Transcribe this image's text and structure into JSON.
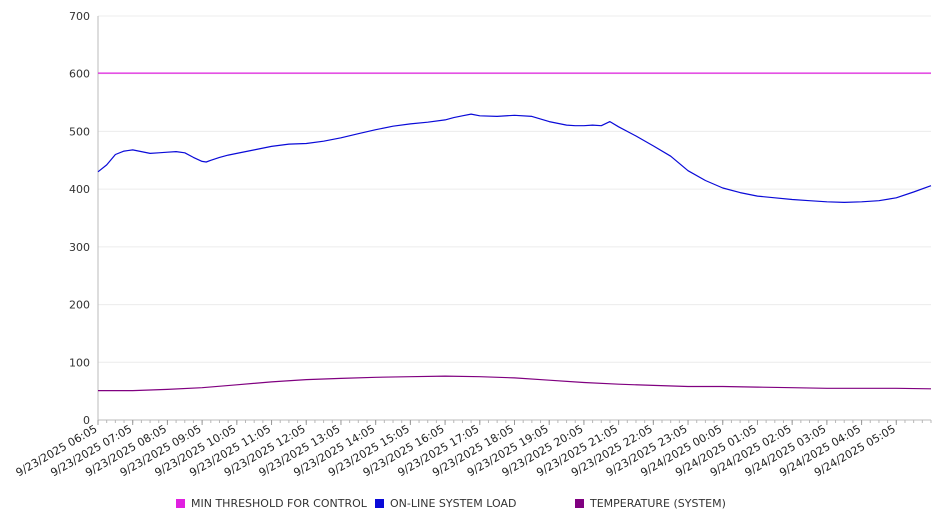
{
  "chart_data": {
    "type": "line",
    "title": "",
    "xlabel": "",
    "ylabel": "",
    "ylim": [
      0,
      700
    ],
    "yticks": [
      "0",
      "100",
      "200",
      "300",
      "400",
      "500",
      "600",
      "700"
    ],
    "xtick_labels": [
      "9/23/2025 06:05",
      "9/23/2025 07:05",
      "9/23/2025 08:05",
      "9/23/2025 09:05",
      "9/23/2025 10:05",
      "9/23/2025 11:05",
      "9/23/2025 12:05",
      "9/23/2025 13:05",
      "9/23/2025 14:05",
      "9/23/2025 15:05",
      "9/23/2025 16:05",
      "9/23/2025 17:05",
      "9/23/2025 18:05",
      "9/23/2025 19:05",
      "9/23/2025 20:05",
      "9/23/2025 21:05",
      "9/23/2025 22:05",
      "9/23/2025 23:05",
      "9/24/2025 00:05",
      "9/24/2025 01:05",
      "9/24/2025 02:05",
      "9/24/2025 03:05",
      "9/24/2025 04:05",
      "9/24/2025 05:05"
    ],
    "grid": true,
    "legend_position": "bottom",
    "series": [
      {
        "name": "MIN THRESHOLD FOR CONTROL",
        "color": "#e020e0",
        "x": [
          "9/23/2025 06:05",
          "9/24/2025 06:05"
        ],
        "values": [
          601,
          601
        ]
      },
      {
        "name": "ON-LINE SYSTEM LOAD",
        "color": "#0a0ad8",
        "x": [
          "9/23/2025 06:05",
          "9/23/2025 06:20",
          "9/23/2025 06:35",
          "9/23/2025 06:50",
          "9/23/2025 07:05",
          "9/23/2025 07:20",
          "9/23/2025 07:35",
          "9/23/2025 07:50",
          "9/23/2025 08:05",
          "9/23/2025 08:20",
          "9/23/2025 08:35",
          "9/23/2025 08:50",
          "9/23/2025 09:05",
          "9/23/2025 09:12",
          "9/23/2025 09:20",
          "9/23/2025 09:35",
          "9/23/2025 09:50",
          "9/23/2025 10:05",
          "9/23/2025 10:35",
          "9/23/2025 11:05",
          "9/23/2025 11:35",
          "9/23/2025 12:05",
          "9/23/2025 12:35",
          "9/23/2025 13:05",
          "9/23/2025 13:35",
          "9/23/2025 14:05",
          "9/23/2025 14:35",
          "9/23/2025 15:05",
          "9/23/2025 15:35",
          "9/23/2025 16:05",
          "9/23/2025 16:20",
          "9/23/2025 16:35",
          "9/23/2025 16:50",
          "9/23/2025 17:05",
          "9/23/2025 17:35",
          "9/23/2025 18:05",
          "9/23/2025 18:35",
          "9/23/2025 19:05",
          "9/23/2025 19:35",
          "9/23/2025 19:50",
          "9/23/2025 20:05",
          "9/23/2025 20:20",
          "9/23/2025 20:35",
          "9/23/2025 20:50",
          "9/23/2025 21:05",
          "9/23/2025 21:35",
          "9/23/2025 22:05",
          "9/23/2025 22:35",
          "9/23/2025 23:05",
          "9/23/2025 23:35",
          "9/24/2025 00:05",
          "9/24/2025 00:35",
          "9/24/2025 01:05",
          "9/24/2025 01:35",
          "9/24/2025 02:05",
          "9/24/2025 02:35",
          "9/24/2025 03:05",
          "9/24/2025 03:35",
          "9/24/2025 04:05",
          "9/24/2025 04:35",
          "9/24/2025 05:05",
          "9/24/2025 05:35",
          "9/24/2025 06:05"
        ],
        "values": [
          430,
          442,
          460,
          466,
          468,
          465,
          462,
          463,
          464,
          465,
          463,
          455,
          448,
          447,
          450,
          455,
          459,
          462,
          468,
          474,
          478,
          479,
          483,
          489,
          496,
          503,
          509,
          513,
          516,
          520,
          524,
          527,
          530,
          527,
          526,
          528,
          526,
          517,
          511,
          510,
          510,
          511,
          510,
          517,
          508,
          492,
          475,
          457,
          432,
          415,
          402,
          394,
          388,
          385,
          382,
          380,
          378,
          377,
          378,
          380,
          385,
          395,
          406
        ]
      },
      {
        "name": "TEMPERATURE (SYSTEM)",
        "color": "#800080",
        "x": [
          "9/23/2025 06:05",
          "9/23/2025 07:05",
          "9/23/2025 08:05",
          "9/23/2025 09:05",
          "9/23/2025 10:05",
          "9/23/2025 11:05",
          "9/23/2025 12:05",
          "9/23/2025 13:05",
          "9/23/2025 14:05",
          "9/23/2025 15:05",
          "9/23/2025 16:05",
          "9/23/2025 17:05",
          "9/23/2025 18:05",
          "9/23/2025 19:05",
          "9/23/2025 20:05",
          "9/23/2025 21:05",
          "9/23/2025 22:05",
          "9/23/2025 23:05",
          "9/24/2025 00:05",
          "9/24/2025 01:05",
          "9/24/2025 02:05",
          "9/24/2025 03:05",
          "9/24/2025 04:05",
          "9/24/2025 05:05",
          "9/24/2025 06:05"
        ],
        "values": [
          51,
          51,
          53,
          56,
          61,
          66,
          70,
          72,
          74,
          75,
          76,
          75,
          73,
          69,
          65,
          62,
          60,
          58,
          58,
          57,
          56,
          55,
          55,
          55,
          54
        ]
      }
    ]
  }
}
